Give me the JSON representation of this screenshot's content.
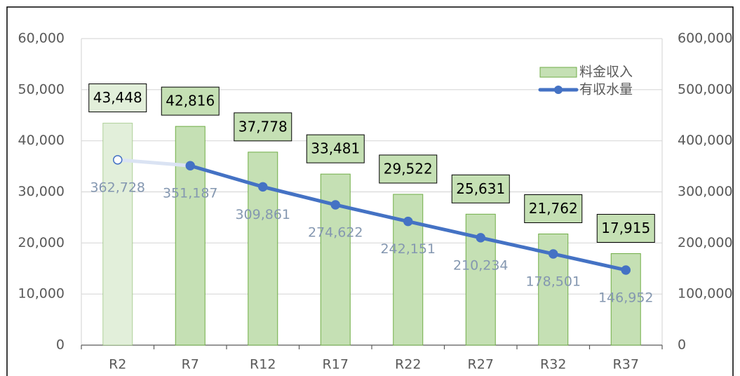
{
  "chart_data": {
    "type": "bar_line",
    "categories": [
      "R2",
      "R7",
      "R12",
      "R17",
      "R22",
      "R27",
      "R32",
      "R37"
    ],
    "series": [
      {
        "name": "料金収入",
        "type": "bar",
        "axis": "y",
        "color": "#c5e0b4",
        "edge_color": "#70ad47",
        "colors": [
          "#e2efda",
          "#c5e0b4",
          "#c5e0b4",
          "#c5e0b4",
          "#c5e0b4",
          "#c5e0b4",
          "#c5e0b4",
          "#c5e0b4"
        ],
        "values": [
          43448,
          42816,
          37778,
          33481,
          29522,
          25631,
          21762,
          17915
        ],
        "value_labels": [
          "43,448",
          "42,816",
          "37,778",
          "33,481",
          "29,522",
          "25,631",
          "21,762",
          "17,915"
        ]
      },
      {
        "name": "有収水量",
        "type": "line",
        "axis": "y2",
        "color": "#4472c4",
        "colors": [
          "#dae3f3",
          "#4472c4",
          "#4472c4",
          "#4472c4",
          "#4472c4",
          "#4472c4",
          "#4472c4",
          "#4472c4"
        ],
        "values": [
          362728,
          351187,
          309861,
          274622,
          242151,
          210234,
          178501,
          146952
        ],
        "value_labels": [
          "362,728",
          "351,187",
          "309,861",
          "274,622",
          "242,151",
          "210,234",
          "178,501",
          "146,952"
        ]
      }
    ],
    "ylim": [
      0,
      60000
    ],
    "yticks": [
      0,
      {
        "value": 10000,
        "label": "10,000"
      },
      {
        "value": 20000,
        "label": "20,000"
      },
      {
        "value": 30000,
        "label": "30,000"
      },
      {
        "value": 40000,
        "label": "40,000"
      },
      {
        "value": 50000,
        "label": "50,000"
      },
      {
        "value": 60000,
        "label": "60,000"
      }
    ],
    "y2lim": [
      0,
      600000
    ],
    "y2ticks": [
      0,
      {
        "value": 100000,
        "label": "100,000"
      },
      {
        "value": 200000,
        "label": "200,000"
      },
      {
        "value": 300000,
        "label": "300,000"
      },
      {
        "value": 400000,
        "label": "400,000"
      },
      {
        "value": 500000,
        "label": "500,000"
      },
      {
        "value": 600000,
        "label": "600,000"
      }
    ],
    "grid": true,
    "legend": "top-right"
  }
}
